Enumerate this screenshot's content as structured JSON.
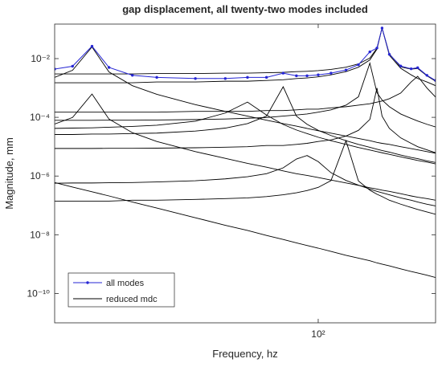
{
  "chart_data": {
    "type": "line",
    "title": "gap displacement, all twenty-two modes included",
    "x_label": "Frequency, hz",
    "y_label": "Magnitude, mm",
    "xscale": "log",
    "yscale": "log",
    "xlim": [
      14,
      240
    ],
    "ylim": [
      1e-11,
      0.15
    ],
    "xticks": [
      {
        "value": 100,
        "label": "10²"
      }
    ],
    "yticks": [
      {
        "value": 1e-10,
        "label": "10⁻¹⁰"
      },
      {
        "value": 1e-08,
        "label": "10⁻⁸"
      },
      {
        "value": 1e-06,
        "label": "10⁻⁶"
      },
      {
        "value": 0.0001,
        "label": "10⁻⁴"
      },
      {
        "value": 0.01,
        "label": "10⁻²"
      }
    ],
    "legend": "lower left",
    "x": [
      14,
      16,
      18.5,
      21,
      25,
      30,
      40,
      50,
      59,
      68,
      77,
      85,
      92,
      100,
      110,
      123,
      135,
      147,
      155,
      161,
      170,
      185,
      200,
      210,
      225,
      240
    ],
    "series": [
      {
        "name": "all modes",
        "color": "#2626d4",
        "marker": true,
        "values": [
          0.0044,
          0.0055,
          0.0265,
          0.005,
          0.0027,
          0.0023,
          0.0021,
          0.0021,
          0.0023,
          0.0023,
          0.0032,
          0.0026,
          0.0026,
          0.0028,
          0.0032,
          0.0041,
          0.0062,
          0.017,
          0.023,
          0.11,
          0.014,
          0.0056,
          0.0045,
          0.0049,
          0.0027,
          0.0018
        ]
      },
      {
        "name": "reduced mdc",
        "color": "#000000",
        "marker": false,
        "curves": [
          [
            0.003,
            0.003,
            0.003,
            0.003,
            0.003,
            0.0031,
            0.0031,
            0.0032,
            0.0032,
            0.0033,
            0.0034,
            0.0036,
            0.0037,
            0.0039,
            0.0043,
            0.0051,
            0.0066,
            0.0105,
            0.0225,
            0.11,
            0.0145,
            0.0052,
            0.0044,
            0.0046,
            0.0026,
            0.0017
          ],
          [
            0.0023,
            0.004,
            0.025,
            0.0035,
            0.0012,
            0.00061,
            0.00027,
            0.00016,
            0.00011,
            8e-05,
            6.1e-05,
            5e-05,
            4.2e-05,
            3.5e-05,
            2.9e-05,
            2.3e-05,
            1.9e-05,
            1.6e-05,
            1.4e-05,
            1.3e-05,
            1.2e-05,
            1e-05,
            8.6e-06,
            7.8e-06,
            6.8e-06,
            6e-06
          ],
          [
            5.9e-05,
            9.9e-05,
            0.00062,
            8.7e-05,
            3e-05,
            1.5e-05,
            6.8e-06,
            4e-06,
            2.7e-06,
            2e-06,
            1.5e-06,
            1.2e-06,
            1.05e-06,
            8.9e-07,
            7.3e-07,
            5.8e-07,
            4.8e-07,
            4e-07,
            3.6e-07,
            3.3e-07,
            3e-07,
            2.5e-07,
            2.1e-07,
            1.9e-07,
            1.7e-07,
            1.5e-07
          ],
          [
            4.2e-05,
            4.3e-05,
            4.4e-05,
            4.6e-05,
            4.9e-05,
            5.4e-05,
            7.4e-05,
            0.00014,
            0.00033,
            0.00012,
            5.7e-05,
            3.7e-05,
            2.8e-05,
            2.1e-05,
            1.6e-05,
            1.2e-05,
            9.4e-06,
            7.7e-06,
            6.8e-06,
            6.2e-06,
            5.5e-06,
            4.5e-06,
            3.8e-06,
            3.4e-06,
            3e-06,
            2.6e-06
          ],
          [
            2.6e-05,
            2.6e-05,
            2.7e-05,
            2.7e-05,
            2.8e-05,
            2.9e-05,
            3.4e-05,
            4.3e-05,
            6.1e-05,
            0.00011,
            0.0011,
            0.00011,
            5.8e-05,
            3.6e-05,
            2.4e-05,
            1.6e-05,
            1.2e-05,
            9.5e-06,
            8.2e-06,
            7.4e-06,
            6.5e-06,
            5.2e-06,
            4.3e-06,
            3.9e-06,
            3.3e-06,
            2.9e-06
          ],
          [
            5.7e-07,
            5.8e-07,
            5.8e-07,
            5.9e-07,
            6e-07,
            6.3e-07,
            6.9e-07,
            8e-07,
            9.5e-07,
            1.2e-06,
            1.9e-06,
            3.8e-06,
            5e-06,
            3.1e-06,
            1.3e-06,
            7.1e-07,
            4.9e-07,
            3.6e-07,
            3e-07,
            2.7e-07,
            2.3e-07,
            1.8e-07,
            1.5e-07,
            1.3e-07,
            1.1e-07,
            9.6e-08
          ],
          [
            1.4e-07,
            1.4e-07,
            1.4e-07,
            1.4e-07,
            1.5e-07,
            1.5e-07,
            1.6e-07,
            1.7e-07,
            1.8e-07,
            2e-07,
            2.3e-07,
            2.7e-07,
            3.2e-07,
            4.1e-07,
            7e-07,
            1.6e-05,
            6.8e-07,
            3.3e-07,
            2.4e-07,
            2e-07,
            1.5e-07,
            1.1e-07,
            8.5e-08,
            7.3e-08,
            6e-08,
            5e-08
          ],
          [
            7.9e-05,
            7.9e-05,
            7.9e-05,
            8e-05,
            8e-05,
            8.1e-05,
            8.4e-05,
            8.8e-05,
            9.3e-05,
            9.9e-05,
            0.00011,
            0.00012,
            0.00013,
            0.00015,
            0.00018,
            0.00026,
            0.0005,
            0.007,
            0.00069,
            0.00039,
            0.00023,
            0.00013,
            9.2e-05,
            7.5e-05,
            5.8e-05,
            4.7e-05
          ],
          [
            0.0015,
            0.0015,
            0.0015,
            0.0015,
            0.0015,
            0.0016,
            0.0016,
            0.0017,
            0.0017,
            0.0018,
            0.0019,
            0.0021,
            0.0022,
            0.0024,
            0.0028,
            0.0036,
            0.0051,
            0.009,
            0.021,
            0.11,
            0.013,
            0.0047,
            0.0028,
            0.0021,
            0.0016,
            0.0012
          ],
          [
            0.00015,
            0.00015,
            0.00015,
            0.00015,
            0.00015,
            0.00015,
            0.00016,
            0.00016,
            0.00016,
            0.00017,
            0.00017,
            0.00018,
            0.00019,
            0.00019,
            0.00021,
            0.00023,
            0.00026,
            0.00029,
            0.00033,
            0.00036,
            0.00043,
            0.00067,
            0.0016,
            0.0025,
            0.001,
            0.00049
          ],
          [
            8.7e-06,
            8.7e-06,
            8.7e-06,
            8.8e-06,
            8.8e-06,
            8.9e-06,
            9.2e-06,
            9.6e-06,
            1e-05,
            1.1e-05,
            1.1e-05,
            1.2e-05,
            1.3e-05,
            1.5e-05,
            1.7e-05,
            2.3e-05,
            3.6e-05,
            8.5e-05,
            0.001,
            0.00011,
            4.2e-05,
            2e-05,
            1.3e-05,
            1e-05,
            7.8e-06,
            6.2e-06
          ],
          [
            6e-07,
            4.2e-07,
            2.9e-07,
            2.1e-07,
            1.3e-07,
            8.1e-08,
            3.8e-08,
            2.1e-08,
            1.4e-08,
            9.5e-09,
            6.9e-09,
            5.3e-09,
            4.3e-09,
            3.5e-09,
            2.7e-09,
            2e-09,
            1.6e-09,
            1.3e-09,
            1.1e-09,
            1e-09,
            8.7e-10,
            6.9e-10,
            5.6e-10,
            5e-10,
            4.2e-10,
            3.5e-10
          ]
        ]
      }
    ]
  }
}
